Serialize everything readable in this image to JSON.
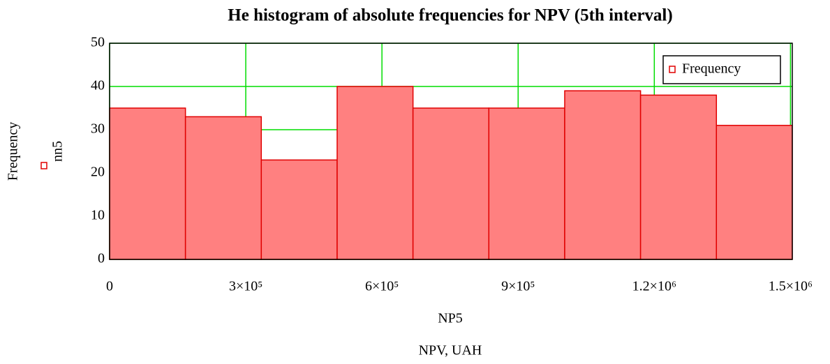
{
  "chart_data": {
    "type": "histogram",
    "title": "He histogram of absolute frequencies for NPV (5th interval)",
    "y_label": "Frequency",
    "y_expression": "nn5",
    "x_expression": "NP5",
    "x_label": "NPV, UAH",
    "bins": [
      0,
      167100,
      334200,
      501300,
      668400,
      835500,
      1002600,
      1169700,
      1336800,
      1503900
    ],
    "series": [
      {
        "name": "Frequency",
        "color": "#ff8080",
        "values": [
          35,
          33,
          23,
          40,
          35,
          35,
          39,
          38,
          31
        ]
      }
    ],
    "xlim": [
      0,
      1504000
    ],
    "ylim": [
      0,
      50
    ],
    "xticks": [
      0,
      {
        "value": 300000,
        "label": "3×10⁵"
      },
      {
        "value": 600000,
        "label": "6×10⁵"
      },
      {
        "value": 900000,
        "label": "9×10⁵"
      },
      {
        "value": 1200000,
        "label": "1.2×10⁶"
      },
      {
        "value": 1500000,
        "label": "1.5×10⁶"
      }
    ],
    "yticks": [
      0,
      10,
      20,
      30,
      40,
      50
    ],
    "grid": true,
    "grid_color": "#00dd00",
    "legend": "upper right"
  }
}
